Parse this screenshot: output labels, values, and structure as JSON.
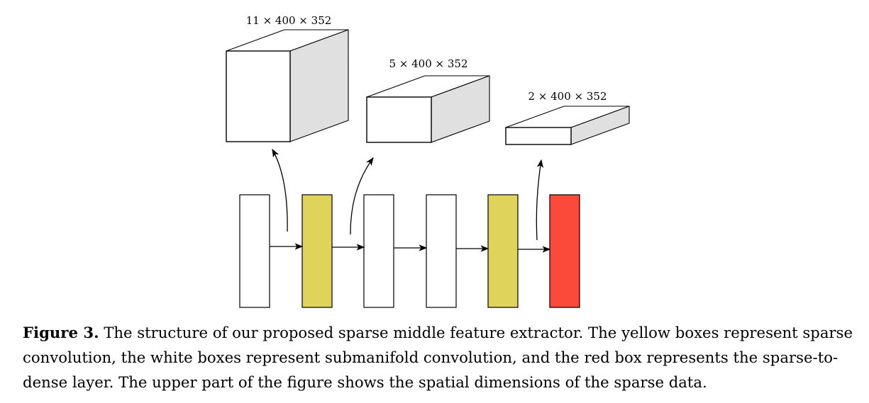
{
  "colors": {
    "sparse_conv": "#e0d35c",
    "submanifold_conv": "#ffffff",
    "sparse_to_dense": "#fb4a3a",
    "cube_side": "#e0e0e0",
    "stroke": "#000000"
  },
  "tensors": [
    {
      "label": "11 × 400 × 352"
    },
    {
      "label": "5 × 400 × 352"
    },
    {
      "label": "2 × 400 × 352"
    }
  ],
  "layers": [
    {
      "type": "submanifold_conv"
    },
    {
      "type": "sparse_conv"
    },
    {
      "type": "submanifold_conv"
    },
    {
      "type": "submanifold_conv"
    },
    {
      "type": "sparse_conv"
    },
    {
      "type": "sparse_to_dense"
    }
  ],
  "caption": {
    "label": "Figure 3.",
    "text": " The structure of our proposed sparse middle feature extractor. The yellow boxes represent sparse convolution, the white boxes represent submanifold convolution, and the red box represents the sparse-to-dense layer. The upper part of the figure shows the spatial dimensions of the sparse data."
  }
}
